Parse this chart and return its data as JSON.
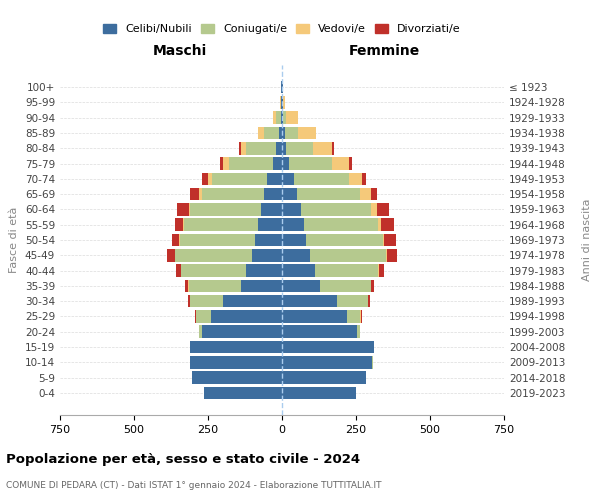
{
  "age_groups": [
    "0-4",
    "5-9",
    "10-14",
    "15-19",
    "20-24",
    "25-29",
    "30-34",
    "35-39",
    "40-44",
    "45-49",
    "50-54",
    "55-59",
    "60-64",
    "65-69",
    "70-74",
    "75-79",
    "80-84",
    "85-89",
    "90-94",
    "95-99",
    "100+"
  ],
  "birth_years": [
    "2019-2023",
    "2014-2018",
    "2009-2013",
    "2004-2008",
    "1999-2003",
    "1994-1998",
    "1989-1993",
    "1984-1988",
    "1979-1983",
    "1974-1978",
    "1969-1973",
    "1964-1968",
    "1959-1963",
    "1954-1958",
    "1949-1953",
    "1944-1948",
    "1939-1943",
    "1934-1938",
    "1929-1933",
    "1924-1928",
    "≤ 1923"
  ],
  "colors": {
    "celibe": "#3d6d9e",
    "coniugato": "#b5c98e",
    "vedovo": "#f5c97a",
    "divorziato": "#c0302a"
  },
  "maschi": {
    "celibe": [
      265,
      305,
      310,
      310,
      270,
      240,
      200,
      140,
      120,
      100,
      90,
      80,
      70,
      60,
      50,
      30,
      20,
      10,
      5,
      3,
      2
    ],
    "coniugato": [
      0,
      0,
      2,
      2,
      10,
      50,
      110,
      175,
      220,
      260,
      255,
      250,
      240,
      210,
      185,
      150,
      100,
      50,
      15,
      2,
      0
    ],
    "vedovo": [
      0,
      0,
      0,
      0,
      0,
      2,
      2,
      2,
      2,
      2,
      2,
      3,
      5,
      10,
      15,
      20,
      20,
      20,
      10,
      2,
      0
    ],
    "divorziato": [
      0,
      0,
      0,
      0,
      0,
      2,
      5,
      10,
      15,
      25,
      25,
      30,
      40,
      30,
      20,
      10,
      5,
      0,
      0,
      0,
      0
    ]
  },
  "femmine": {
    "nubile": [
      250,
      285,
      305,
      310,
      255,
      220,
      185,
      130,
      110,
      95,
      80,
      75,
      65,
      50,
      40,
      25,
      15,
      10,
      5,
      3,
      2
    ],
    "coniugata": [
      0,
      0,
      2,
      2,
      8,
      45,
      105,
      170,
      215,
      255,
      260,
      250,
      235,
      215,
      185,
      145,
      90,
      45,
      10,
      2,
      0
    ],
    "vedova": [
      0,
      0,
      0,
      0,
      0,
      2,
      2,
      2,
      3,
      5,
      5,
      10,
      20,
      35,
      45,
      55,
      65,
      60,
      40,
      5,
      0
    ],
    "divorziata": [
      0,
      0,
      0,
      0,
      0,
      2,
      5,
      10,
      15,
      35,
      40,
      45,
      40,
      20,
      15,
      10,
      5,
      0,
      0,
      0,
      0
    ]
  },
  "xlim": 750,
  "title": "Popolazione per età, sesso e stato civile - 2024",
  "subtitle": "COMUNE DI PEDARA (CT) - Dati ISTAT 1° gennaio 2024 - Elaborazione TUTTITALIA.IT",
  "xlabel_left": "Maschi",
  "xlabel_right": "Femmine",
  "ylabel_left": "Fasce di età",
  "ylabel_right": "Anni di nascita",
  "bg_color": "#f5f5f5"
}
